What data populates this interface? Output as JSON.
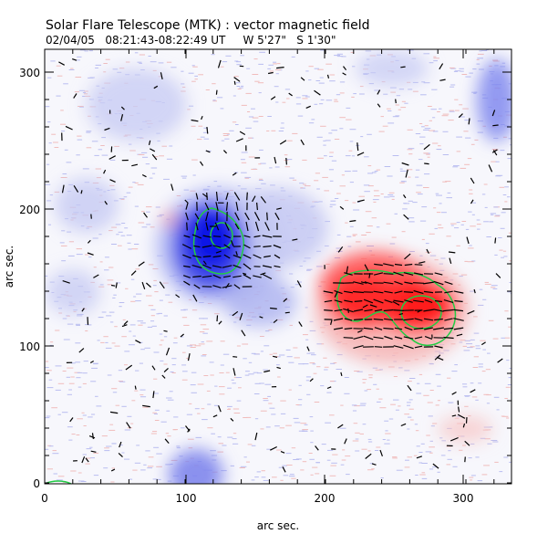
{
  "figure": {
    "title": "Solar Flare Telescope (MTK) : vector magnetic field",
    "subtitle": "02/04/05   08:21:43-08:22:49 UT     W 5'27\"   S 1'30\"",
    "xlabel": "arc sec.",
    "ylabel": "arc sec.",
    "xticks": [
      "0",
      "100",
      "200",
      "300"
    ],
    "yticks": [
      "0",
      "100",
      "200",
      "300"
    ]
  },
  "colors": {
    "background": "#ffffff",
    "positive_polarity": "#ff1a1a",
    "negative_polarity": "#0a14e6",
    "contour": "#22cc44",
    "vectors": "#000000"
  },
  "chart_data": {
    "type": "heatmap",
    "title": "Solar Flare Telescope (MTK) : vector magnetic field",
    "xlabel": "arc sec.",
    "ylabel": "arc sec.",
    "xlim": [
      0,
      340
    ],
    "ylim": [
      0,
      325
    ],
    "regions": [
      {
        "name": "negative polarity core",
        "polarity": "negative",
        "center": [
          128,
          178
        ],
        "extent": [
          35,
          50
        ]
      },
      {
        "name": "negative polarity extension",
        "polarity": "negative",
        "center": [
          165,
          175
        ],
        "extent": [
          60,
          45
        ]
      },
      {
        "name": "positive polarity core",
        "polarity": "positive",
        "center": [
          255,
          135
        ],
        "extent": [
          55,
          35
        ]
      },
      {
        "name": "positive polarity envelope",
        "polarity": "positive",
        "center": [
          240,
          125
        ],
        "extent": [
          75,
          55
        ]
      }
    ],
    "contours": [
      {
        "name": "negative core contour",
        "center": [
          127,
          178
        ],
        "extent": [
          13,
          16
        ]
      },
      {
        "name": "positive core contour",
        "center": [
          272,
          125
        ],
        "extent": [
          16,
          13
        ]
      }
    ]
  }
}
